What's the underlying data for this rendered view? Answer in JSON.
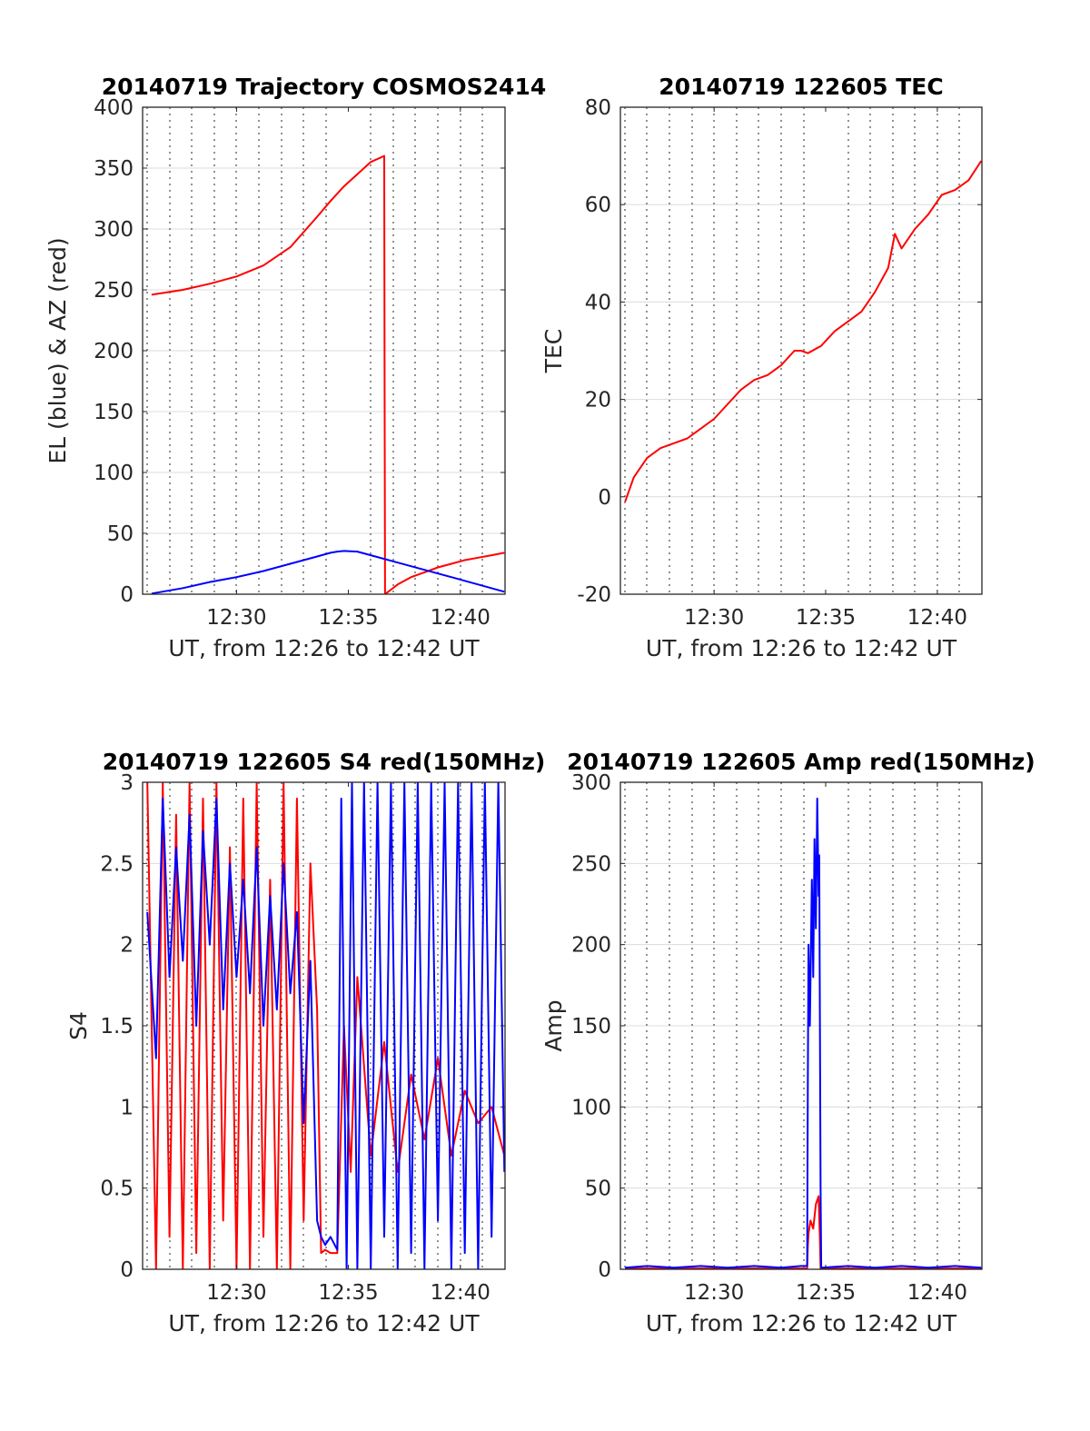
{
  "chart_data": [
    {
      "type": "line",
      "title": "20140719 Trajectory COSMOS2414",
      "xlabel": "UT, from 12:26 to 12:42 UT",
      "ylabel": "EL (blue) & AZ (red)",
      "xlim": [
        12.43,
        12.7
      ],
      "ylim": [
        0,
        400
      ],
      "xticks": [
        12.5,
        12.5833,
        12.6667
      ],
      "xticklabels": [
        "12:30",
        "12:35",
        "12:40"
      ],
      "yticks": [
        0,
        50,
        100,
        150,
        200,
        250,
        300,
        350,
        400
      ],
      "yticklabels": [
        "0",
        "50",
        "100",
        "150",
        "200",
        "250",
        "300",
        "350",
        "400"
      ],
      "minor_grid_x": [
        12.45,
        12.4667,
        12.4833,
        12.5167,
        12.5333,
        12.55,
        12.5667,
        12.6,
        12.6167,
        12.6333,
        12.65,
        12.6833
      ],
      "major_grid_x": [
        12.4333,
        12.4667,
        12.5,
        12.5333,
        12.5667,
        12.6,
        12.6333,
        12.6667,
        12.7
      ],
      "series": [
        {
          "color": "#ff0000",
          "x": [
            12.4367,
            12.46,
            12.48,
            12.5,
            12.52,
            12.54,
            12.56,
            12.57,
            12.58,
            12.59,
            12.6,
            12.61,
            12.6103,
            12.6106,
            12.62,
            12.63,
            12.64,
            12.65,
            12.66,
            12.67,
            12.68,
            12.69,
            12.6995
          ],
          "y": [
            246,
            250,
            255,
            261,
            270,
            285,
            310,
            323,
            335,
            345,
            355,
            360,
            180,
            0,
            8,
            14,
            18,
            22,
            25,
            28,
            30,
            32,
            34
          ]
        },
        {
          "color": "#0000ff",
          "x": [
            12.4367,
            12.46,
            12.48,
            12.5,
            12.52,
            12.54,
            12.56,
            12.57,
            12.575,
            12.58,
            12.59,
            12.6,
            12.62,
            12.64,
            12.66,
            12.68,
            12.6995
          ],
          "y": [
            0.5,
            5,
            10,
            14,
            19,
            25,
            31,
            34,
            35,
            35.5,
            35,
            32,
            26,
            20,
            14,
            8,
            2
          ]
        }
      ]
    },
    {
      "type": "line",
      "title": "20140719 122605 TEC",
      "xlabel": "UT, from 12:26 to 12:42 UT",
      "ylabel": "TEC",
      "xlim": [
        12.43,
        12.7
      ],
      "ylim": [
        -20,
        80
      ],
      "xticks": [
        12.5,
        12.5833,
        12.6667
      ],
      "xticklabels": [
        "12:30",
        "12:35",
        "12:40"
      ],
      "yticks": [
        -20,
        0,
        20,
        40,
        60,
        80
      ],
      "yticklabels": [
        "-20",
        "0",
        "20",
        "40",
        "60",
        "80"
      ],
      "minor_grid_x": [
        12.45,
        12.4667,
        12.4833,
        12.5167,
        12.5333,
        12.55,
        12.5667,
        12.6,
        12.6167,
        12.6333,
        12.65,
        12.6833
      ],
      "major_grid_x": [
        12.4333,
        12.4667,
        12.5,
        12.5333,
        12.5667,
        12.6,
        12.6333,
        12.6667,
        12.7
      ],
      "series": [
        {
          "color": "#ff0000",
          "x": [
            12.4335,
            12.44,
            12.45,
            12.46,
            12.47,
            12.48,
            12.49,
            12.5,
            12.51,
            12.52,
            12.53,
            12.54,
            12.55,
            12.56,
            12.565,
            12.57,
            12.58,
            12.59,
            12.6,
            12.61,
            12.62,
            12.63,
            12.635,
            12.64,
            12.65,
            12.66,
            12.67,
            12.68,
            12.69,
            12.6995
          ],
          "y": [
            -1,
            4,
            8,
            10,
            11,
            12,
            14,
            16,
            19,
            22,
            24,
            25,
            27,
            30,
            30,
            29.5,
            31,
            34,
            36,
            38,
            42,
            47,
            54,
            51,
            55,
            58,
            62,
            63,
            65,
            69
          ]
        }
      ]
    },
    {
      "type": "line",
      "title": "20140719 122605 S4 red(150MHz)",
      "xlabel": "UT, from 12:26 to 12:42 UT",
      "ylabel": "S4",
      "xlim": [
        12.43,
        12.7
      ],
      "ylim": [
        0,
        3
      ],
      "xticks": [
        12.5,
        12.5833,
        12.6667
      ],
      "xticklabels": [
        "12:30",
        "12:35",
        "12:40"
      ],
      "yticks": [
        0,
        0.5,
        1,
        1.5,
        2,
        2.5,
        3
      ],
      "yticklabels": [
        "0",
        "0.5",
        "1",
        "1.5",
        "2",
        "2.5",
        "3"
      ],
      "minor_grid_x": [
        12.45,
        12.4667,
        12.4833,
        12.5167,
        12.5333,
        12.55,
        12.5667,
        12.6,
        12.6167,
        12.6333,
        12.65,
        12.6833
      ],
      "major_grid_x": [
        12.4333,
        12.4667,
        12.5,
        12.5333,
        12.5667,
        12.6,
        12.6333,
        12.6667,
        12.7
      ],
      "series": [
        {
          "color": "#ff0000",
          "x": [
            12.4335,
            12.44,
            12.445,
            12.45,
            12.455,
            12.46,
            12.465,
            12.47,
            12.475,
            12.48,
            12.485,
            12.49,
            12.495,
            12.5,
            12.505,
            12.51,
            12.515,
            12.52,
            12.525,
            12.53,
            12.535,
            12.54,
            12.545,
            12.55,
            12.555,
            12.56,
            12.563,
            12.566,
            12.57,
            12.575,
            12.58,
            12.585,
            12.59,
            12.6,
            12.61,
            12.62,
            12.63,
            12.64,
            12.65,
            12.66,
            12.67,
            12.68,
            12.69,
            12.6995
          ],
          "y": [
            3,
            0,
            3,
            0.2,
            2.8,
            0,
            3,
            0.1,
            2.9,
            0,
            3,
            0.3,
            2.6,
            0,
            2.9,
            0,
            3,
            0.2,
            2.4,
            0,
            3,
            0,
            2.9,
            0.3,
            2.5,
            1.6,
            0.1,
            0.12,
            0.1,
            0.1,
            1.5,
            0.6,
            1.8,
            0.7,
            1.4,
            0.6,
            1.2,
            0.8,
            1.3,
            0.7,
            1.1,
            0.9,
            1.0,
            0.7
          ]
        },
        {
          "color": "#0000ff",
          "x": [
            12.4335,
            12.44,
            12.445,
            12.45,
            12.455,
            12.46,
            12.465,
            12.47,
            12.475,
            12.48,
            12.485,
            12.49,
            12.495,
            12.5,
            12.505,
            12.51,
            12.515,
            12.52,
            12.525,
            12.53,
            12.535,
            12.54,
            12.545,
            12.55,
            12.555,
            12.56,
            12.563,
            12.566,
            12.57,
            12.575,
            12.578,
            12.582,
            12.586,
            12.59,
            12.595,
            12.6,
            12.605,
            12.61,
            12.615,
            12.62,
            12.625,
            12.63,
            12.635,
            12.64,
            12.645,
            12.65,
            12.655,
            12.66,
            12.665,
            12.67,
            12.675,
            12.68,
            12.685,
            12.69,
            12.695,
            12.6995
          ],
          "y": [
            2.2,
            1.3,
            2.9,
            1.8,
            2.6,
            1.9,
            2.8,
            1.5,
            2.7,
            2.0,
            2.9,
            1.6,
            2.5,
            1.8,
            2.4,
            1.7,
            2.6,
            1.5,
            2.3,
            1.6,
            2.5,
            1.7,
            2.2,
            0.9,
            1.9,
            0.3,
            0.2,
            0.15,
            0.2,
            0.12,
            2.9,
            0,
            3,
            0,
            3,
            0,
            3,
            0.2,
            3,
            0,
            3,
            0.1,
            3,
            0,
            3,
            0.3,
            3,
            0,
            3,
            0.1,
            3,
            0,
            3,
            0.2,
            3,
            0.6
          ]
        }
      ]
    },
    {
      "type": "line",
      "title": "20140719 122605 Amp red(150MHz)",
      "xlabel": "UT, from 12:26 to 12:42 UT",
      "ylabel": "Amp",
      "xlim": [
        12.43,
        12.7
      ],
      "ylim": [
        0,
        300
      ],
      "xticks": [
        12.5,
        12.5833,
        12.6667
      ],
      "xticklabels": [
        "12:30",
        "12:35",
        "12:40"
      ],
      "yticks": [
        0,
        50,
        100,
        150,
        200,
        250,
        300
      ],
      "yticklabels": [
        "0",
        "50",
        "100",
        "150",
        "200",
        "250",
        "300"
      ],
      "minor_grid_x": [
        12.45,
        12.4667,
        12.4833,
        12.5167,
        12.5333,
        12.55,
        12.5667,
        12.6,
        12.6167,
        12.6333,
        12.65,
        12.6833
      ],
      "major_grid_x": [
        12.4333,
        12.4667,
        12.5,
        12.5333,
        12.5667,
        12.6,
        12.6333,
        12.6667,
        12.7
      ],
      "series": [
        {
          "color": "#ff0000",
          "x": [
            12.4335,
            12.5,
            12.5695,
            12.57,
            12.5705,
            12.572,
            12.574,
            12.576,
            12.578,
            12.579,
            12.5795,
            12.6995
          ],
          "y": [
            0.5,
            0.5,
            0.5,
            15,
            22,
            30,
            25,
            40,
            45,
            20,
            0.5,
            0.5
          ]
        },
        {
          "color": "#0000ff",
          "x": [
            12.4335,
            12.45,
            12.47,
            12.49,
            12.51,
            12.53,
            12.55,
            12.565,
            12.5695,
            12.57,
            12.5705,
            12.5715,
            12.573,
            12.574,
            12.575,
            12.576,
            12.577,
            12.578,
            12.5785,
            12.579,
            12.5795,
            12.58,
            12.6,
            12.62,
            12.64,
            12.66,
            12.68,
            12.6995
          ],
          "y": [
            1,
            2,
            1,
            2,
            1,
            2,
            1,
            2,
            2,
            120,
            200,
            150,
            240,
            180,
            265,
            210,
            290,
            230,
            255,
            160,
            50,
            1,
            2,
            1,
            2,
            1,
            2,
            1
          ]
        }
      ]
    }
  ]
}
